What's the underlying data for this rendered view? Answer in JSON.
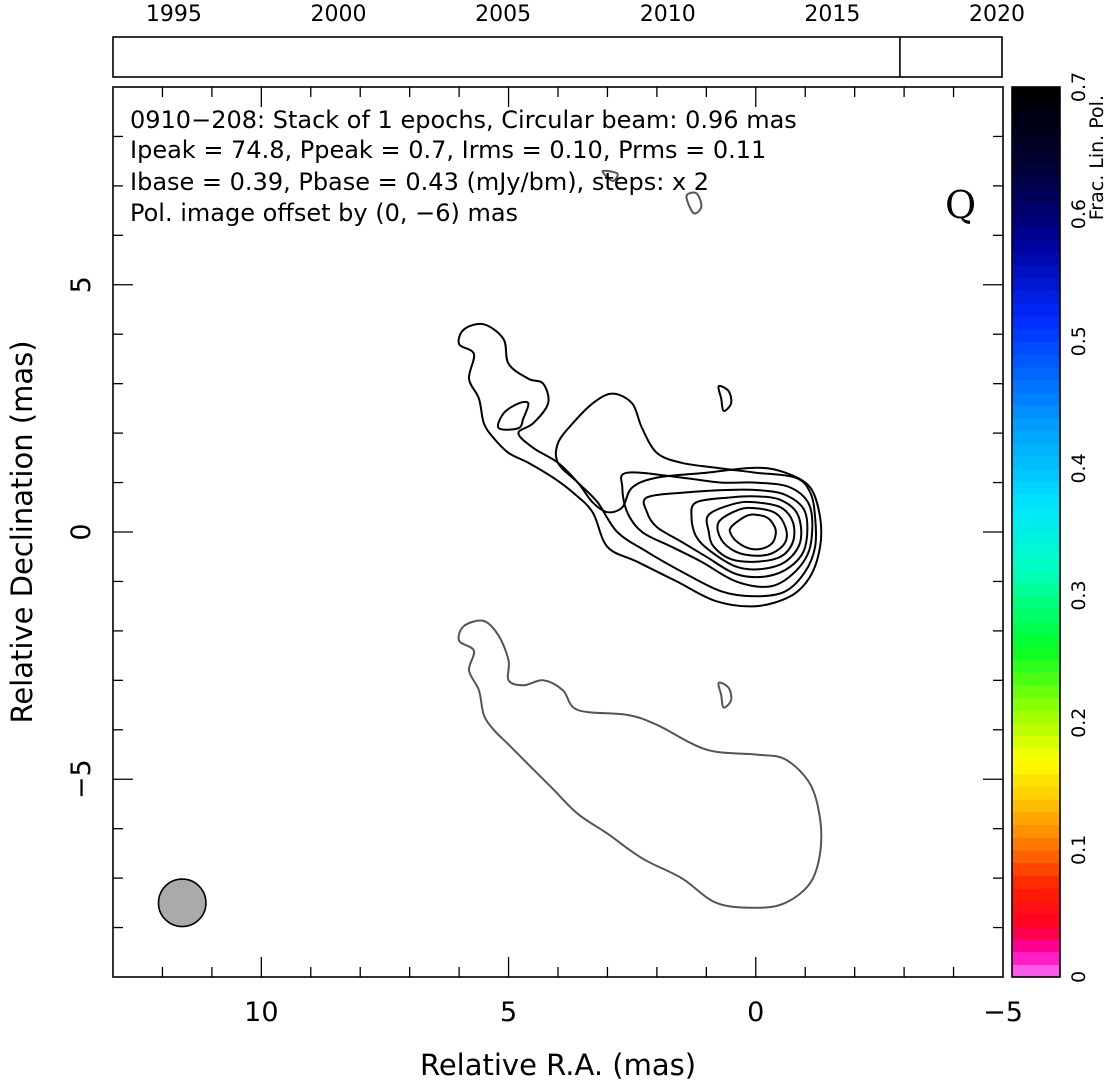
{
  "chart_data": {
    "type": "contour",
    "title_lines": [
      "0910−208: Stack of 1 epochs, Circular beam: 0.96 mas",
      "Ipeak = 74.8, Ppeak = 0.7, Irms = 0.10, Prms = 0.11",
      "Ibase = 0.39, Pbase = 0.43 (mJy/bm), steps: x 2"
    ],
    "pol_offset_note": "Pol. image offset by (0, −6) mas",
    "pol_offset_color": "#1a86e6",
    "band_label": "Q",
    "xlabel": "Relative R.A. (mas)",
    "ylabel": "Relative Declination (mas)",
    "xlim": [
      13,
      -5
    ],
    "ylim": [
      -9,
      9
    ],
    "x_ticks": [
      {
        "value": 10,
        "label": "10"
      },
      {
        "value": 5,
        "label": "5"
      },
      {
        "value": 0,
        "label": "0"
      },
      {
        "value": -5,
        "label": "−5"
      }
    ],
    "y_ticks": [
      {
        "value": 5,
        "label": "5"
      },
      {
        "value": 0,
        "label": "0"
      },
      {
        "value": -5,
        "label": "−5"
      }
    ],
    "epoch_axis": {
      "range": [
        1993,
        2020
      ],
      "ticks": [
        {
          "value": 1995,
          "label": "1995"
        },
        {
          "value": 2000,
          "label": "2000"
        },
        {
          "value": 2005,
          "label": "2005"
        },
        {
          "value": 2010,
          "label": "2010"
        },
        {
          "value": 2015,
          "label": "2015"
        },
        {
          "value": 2020,
          "label": "2020"
        }
      ],
      "epochs": [
        2016.9
      ]
    },
    "colorbar": {
      "label": "Frac. Lin. Pol.",
      "range": [
        0,
        0.7
      ],
      "ticks": [
        {
          "value": 0,
          "label": "0"
        },
        {
          "value": 0.1,
          "label": "0.1"
        },
        {
          "value": 0.2,
          "label": "0.2"
        },
        {
          "value": 0.3,
          "label": "0.3"
        },
        {
          "value": 0.4,
          "label": "0.4"
        },
        {
          "value": 0.5,
          "label": "0.5"
        },
        {
          "value": 0.6,
          "label": "0.6"
        },
        {
          "value": 0.7,
          "label": "0.7"
        }
      ]
    },
    "beam": {
      "diameter_mas": 0.96,
      "center": [
        11.6,
        -7.5
      ],
      "fill": "#aaaaaa"
    },
    "total_intensity_contours": [
      {
        "level": 1,
        "points": [
          [
            5.7,
            3.6
          ],
          [
            6.0,
            3.8
          ],
          [
            5.9,
            4.1
          ],
          [
            5.5,
            4.2
          ],
          [
            5.1,
            3.9
          ],
          [
            5.0,
            3.4
          ],
          [
            4.6,
            3.1
          ],
          [
            4.3,
            3.0
          ],
          [
            4.2,
            2.6
          ],
          [
            4.5,
            2.2
          ],
          [
            4.8,
            2.0
          ],
          [
            4.5,
            1.7
          ],
          [
            4.0,
            1.4
          ],
          [
            3.6,
            1.0
          ],
          [
            3.3,
            0.6
          ],
          [
            3.0,
            0.4
          ],
          [
            2.7,
            0.5
          ],
          [
            2.5,
            0.9
          ],
          [
            2.0,
            1.1
          ],
          [
            1.0,
            1.2
          ],
          [
            0.0,
            1.3
          ],
          [
            -0.6,
            1.2
          ],
          [
            -1.1,
            0.9
          ],
          [
            -1.3,
            0.3
          ],
          [
            -1.3,
            -0.3
          ],
          [
            -1.1,
            -0.9
          ],
          [
            -0.7,
            -1.3
          ],
          [
            0.0,
            -1.5
          ],
          [
            0.8,
            -1.4
          ],
          [
            1.6,
            -1.0
          ],
          [
            2.4,
            -0.6
          ],
          [
            3.0,
            -0.3
          ],
          [
            3.3,
            0.4
          ],
          [
            3.7,
            0.8
          ],
          [
            4.1,
            1.1
          ],
          [
            4.6,
            1.4
          ],
          [
            5.0,
            1.6
          ],
          [
            5.3,
            1.9
          ],
          [
            5.5,
            2.2
          ],
          [
            5.6,
            2.7
          ],
          [
            5.8,
            3.1
          ]
        ]
      },
      {
        "level": 1,
        "points": [
          [
            4.6,
            2.6
          ],
          [
            4.7,
            2.3
          ],
          [
            4.8,
            2.1
          ],
          [
            5.2,
            2.1
          ],
          [
            5.1,
            2.4
          ],
          [
            4.8,
            2.6
          ]
        ]
      },
      {
        "level": 1,
        "points": [
          [
            0.7,
            2.7
          ],
          [
            0.75,
            2.95
          ],
          [
            0.55,
            2.85
          ],
          [
            0.5,
            2.6
          ],
          [
            0.65,
            2.45
          ]
        ]
      },
      {
        "level": 2,
        "points": [
          [
            4.0,
            1.8
          ],
          [
            3.7,
            2.2
          ],
          [
            3.3,
            2.6
          ],
          [
            2.9,
            2.8
          ],
          [
            2.5,
            2.6
          ],
          [
            2.3,
            2.1
          ],
          [
            2.0,
            1.6
          ],
          [
            1.5,
            1.4
          ],
          [
            0.8,
            1.3
          ],
          [
            0.0,
            1.2
          ],
          [
            -0.8,
            1.1
          ],
          [
            -1.1,
            0.8
          ],
          [
            -1.2,
            0.3
          ],
          [
            -1.2,
            -0.3
          ],
          [
            -1.0,
            -0.8
          ],
          [
            -0.6,
            -1.2
          ],
          [
            0.0,
            -1.3
          ],
          [
            0.7,
            -1.2
          ],
          [
            1.5,
            -0.8
          ],
          [
            2.2,
            -0.4
          ],
          [
            2.8,
            0.0
          ],
          [
            3.2,
            0.6
          ],
          [
            3.6,
            1.0
          ],
          [
            4.0,
            1.4
          ]
        ]
      },
      {
        "level": 3,
        "points": [
          [
            2.6,
            1.2
          ],
          [
            1.5,
            1.1
          ],
          [
            0.7,
            1.0
          ],
          [
            0.0,
            1.0
          ],
          [
            -0.7,
            0.9
          ],
          [
            -1.1,
            0.5
          ],
          [
            -1.1,
            -0.3
          ],
          [
            -0.8,
            -0.8
          ],
          [
            -0.3,
            -1.1
          ],
          [
            0.4,
            -1.0
          ],
          [
            1.1,
            -0.6
          ],
          [
            1.7,
            -0.3
          ],
          [
            2.3,
            0.0
          ],
          [
            2.6,
            0.4
          ],
          [
            2.7,
            0.9
          ]
        ]
      },
      {
        "level": 4,
        "points": [
          [
            2.2,
            0.7
          ],
          [
            1.4,
            0.8
          ],
          [
            0.6,
            0.85
          ],
          [
            0.0,
            0.85
          ],
          [
            -0.6,
            0.75
          ],
          [
            -1.0,
            0.4
          ],
          [
            -1.0,
            -0.3
          ],
          [
            -0.7,
            -0.7
          ],
          [
            -0.2,
            -0.9
          ],
          [
            0.4,
            -0.85
          ],
          [
            1.0,
            -0.5
          ],
          [
            1.5,
            -0.2
          ],
          [
            2.0,
            0.1
          ],
          [
            2.2,
            0.4
          ]
        ]
      },
      {
        "level": 5,
        "points": [
          [
            1.2,
            0.6
          ],
          [
            0.5,
            0.7
          ],
          [
            0.0,
            0.72
          ],
          [
            -0.5,
            0.65
          ],
          [
            -0.85,
            0.35
          ],
          [
            -0.9,
            -0.2
          ],
          [
            -0.6,
            -0.6
          ],
          [
            -0.1,
            -0.75
          ],
          [
            0.4,
            -0.7
          ],
          [
            0.9,
            -0.4
          ],
          [
            1.2,
            -0.1
          ],
          [
            1.3,
            0.3
          ]
        ]
      },
      {
        "level": 6,
        "points": [
          [
            0.95,
            0.35
          ],
          [
            0.4,
            0.58
          ],
          [
            0.0,
            0.6
          ],
          [
            -0.5,
            0.5
          ],
          [
            -0.75,
            0.2
          ],
          [
            -0.75,
            -0.2
          ],
          [
            -0.5,
            -0.5
          ],
          [
            0.0,
            -0.6
          ],
          [
            0.5,
            -0.55
          ],
          [
            0.85,
            -0.3
          ],
          [
            0.95,
            0.0
          ]
        ]
      },
      {
        "level": 7,
        "points": [
          [
            0.75,
            0.2
          ],
          [
            0.35,
            0.45
          ],
          [
            0.0,
            0.48
          ],
          [
            -0.4,
            0.38
          ],
          [
            -0.6,
            0.1
          ],
          [
            -0.6,
            -0.2
          ],
          [
            -0.35,
            -0.42
          ],
          [
            0.0,
            -0.48
          ],
          [
            0.4,
            -0.4
          ],
          [
            0.7,
            -0.15
          ]
        ]
      },
      {
        "level": 8,
        "points": [
          [
            0.5,
            0.1
          ],
          [
            0.2,
            0.32
          ],
          [
            0.0,
            0.35
          ],
          [
            -0.25,
            0.28
          ],
          [
            -0.4,
            0.05
          ],
          [
            -0.35,
            -0.2
          ],
          [
            -0.15,
            -0.33
          ],
          [
            0.1,
            -0.34
          ],
          [
            0.35,
            -0.22
          ],
          [
            0.5,
            -0.05
          ]
        ]
      }
    ],
    "polarization_contours": [
      {
        "points": [
          [
            5.7,
            -2.4
          ],
          [
            6.0,
            -2.2
          ],
          [
            5.9,
            -1.9
          ],
          [
            5.5,
            -1.8
          ],
          [
            5.2,
            -2.1
          ],
          [
            5.0,
            -2.6
          ],
          [
            5.0,
            -3.0
          ],
          [
            4.7,
            -3.1
          ],
          [
            4.3,
            -3.0
          ],
          [
            3.9,
            -3.2
          ],
          [
            3.6,
            -3.6
          ],
          [
            2.6,
            -3.7
          ],
          [
            2.0,
            -3.9
          ],
          [
            1.0,
            -4.4
          ],
          [
            0.0,
            -4.5
          ],
          [
            -0.6,
            -4.6
          ],
          [
            -1.1,
            -5.1
          ],
          [
            -1.3,
            -5.8
          ],
          [
            -1.3,
            -6.5
          ],
          [
            -1.1,
            -7.1
          ],
          [
            -0.6,
            -7.5
          ],
          [
            0.0,
            -7.6
          ],
          [
            0.8,
            -7.5
          ],
          [
            1.5,
            -7.0
          ],
          [
            2.3,
            -6.6
          ],
          [
            3.0,
            -6.1
          ],
          [
            3.6,
            -5.7
          ],
          [
            4.1,
            -5.2
          ],
          [
            4.6,
            -4.7
          ],
          [
            5.0,
            -4.3
          ],
          [
            5.3,
            -4.0
          ],
          [
            5.5,
            -3.7
          ],
          [
            5.6,
            -3.2
          ],
          [
            5.8,
            -2.8
          ]
        ]
      },
      {
        "points": [
          [
            0.7,
            -3.3
          ],
          [
            0.75,
            -3.05
          ],
          [
            0.55,
            -3.15
          ],
          [
            0.5,
            -3.4
          ],
          [
            0.65,
            -3.55
          ]
        ]
      },
      {
        "points": [
          [
            1.3,
            6.5
          ],
          [
            1.4,
            6.8
          ],
          [
            1.2,
            6.85
          ],
          [
            1.1,
            6.6
          ],
          [
            1.2,
            6.45
          ]
        ]
      },
      {
        "points": [
          [
            3.1,
            7.3
          ],
          [
            2.9,
            7.1
          ],
          [
            2.8,
            7.25
          ]
        ]
      }
    ]
  }
}
